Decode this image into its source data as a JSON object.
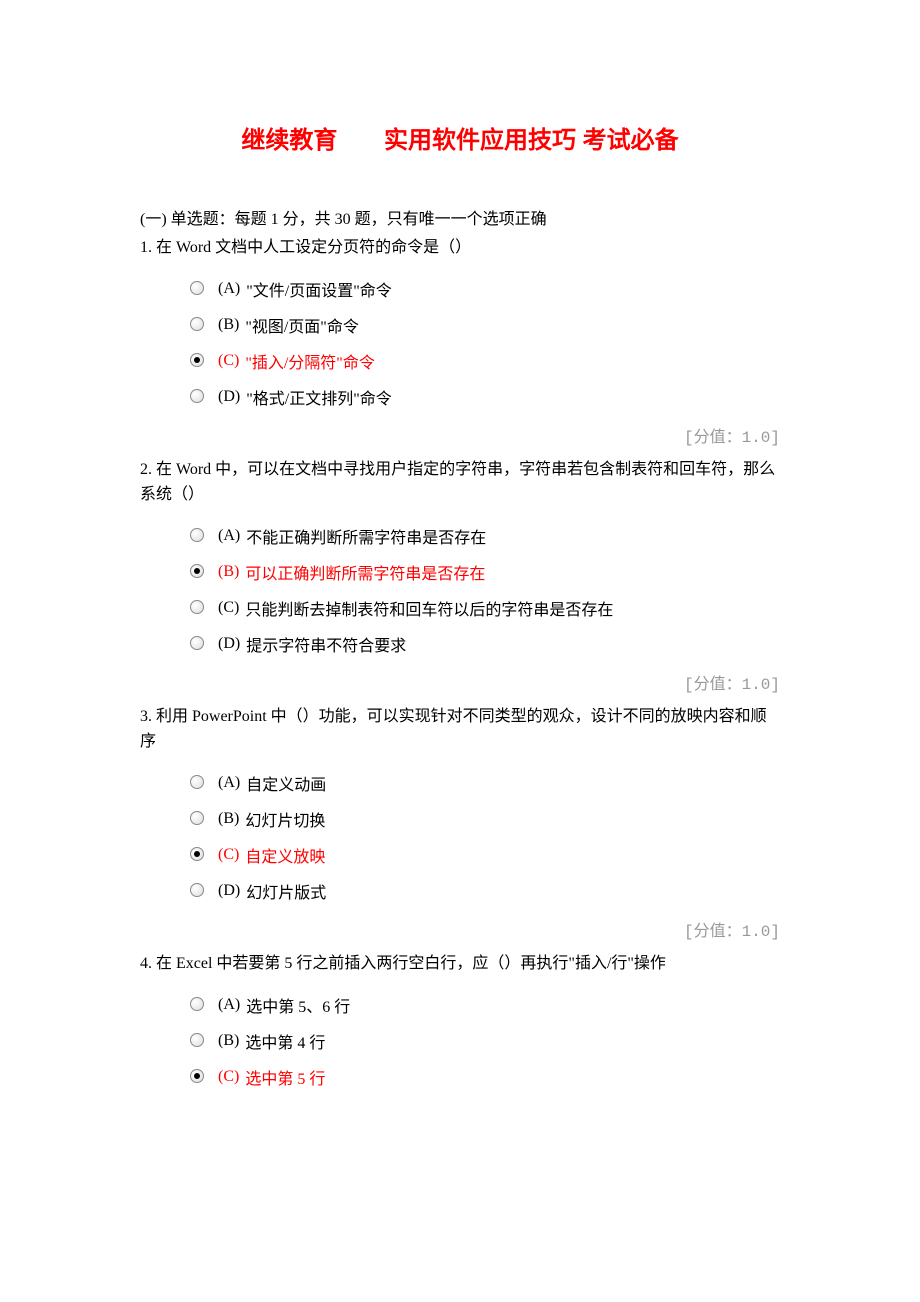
{
  "title_part1": "继续教育",
  "title_part2": "实用软件应用技巧 考试必备",
  "section_header": "(一) 单选题：每题 1 分，共 30 题，只有唯一一个选项正确",
  "score_label": "[分值：1.0]",
  "questions": [
    {
      "number": "1.",
      "text": "在 Word 文档中人工设定分页符的命令是（）",
      "options": [
        {
          "label": "(A)",
          "text": "\"文件/页面设置\"命令",
          "selected": false,
          "correct": false
        },
        {
          "label": "(B)",
          "text": "\"视图/页面\"命令",
          "selected": false,
          "correct": false
        },
        {
          "label": "(C)",
          "text": "\"插入/分隔符\"命令",
          "selected": true,
          "correct": true
        },
        {
          "label": "(D)",
          "text": "\"格式/正文排列\"命令",
          "selected": false,
          "correct": false
        }
      ]
    },
    {
      "number": "2.",
      "text": "在 Word 中，可以在文档中寻找用户指定的字符串，字符串若包含制表符和回车符，那么系统（）",
      "options": [
        {
          "label": "(A)",
          "text": "不能正确判断所需字符串是否存在",
          "selected": false,
          "correct": false
        },
        {
          "label": "(B)",
          "text": "可以正确判断所需字符串是否存在",
          "selected": true,
          "correct": true
        },
        {
          "label": "(C)",
          "text": "只能判断去掉制表符和回车符以后的字符串是否存在",
          "selected": false,
          "correct": false
        },
        {
          "label": "(D)",
          "text": "提示字符串不符合要求",
          "selected": false,
          "correct": false
        }
      ]
    },
    {
      "number": "3.",
      "text": "利用 PowerPoint 中（）功能，可以实现针对不同类型的观众，设计不同的放映内容和顺序",
      "options": [
        {
          "label": "(A)",
          "text": "自定义动画",
          "selected": false,
          "correct": false
        },
        {
          "label": "(B)",
          "text": "幻灯片切换",
          "selected": false,
          "correct": false
        },
        {
          "label": "(C)",
          "text": "自定义放映",
          "selected": true,
          "correct": true
        },
        {
          "label": "(D)",
          "text": "幻灯片版式",
          "selected": false,
          "correct": false
        }
      ]
    },
    {
      "number": "4.",
      "text": "在 Excel 中若要第 5 行之前插入两行空白行，应（）再执行\"插入/行\"操作",
      "options": [
        {
          "label": "(A)",
          "text": "选中第 5、6 行",
          "selected": false,
          "correct": false
        },
        {
          "label": "(B)",
          "text": "选中第 4 行",
          "selected": false,
          "correct": false
        },
        {
          "label": "(C)",
          "text": "选中第 5 行",
          "selected": true,
          "correct": true
        }
      ]
    }
  ]
}
